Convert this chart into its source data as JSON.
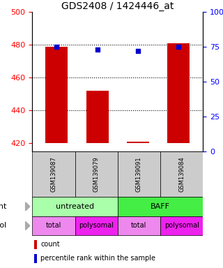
{
  "title": "GDS2408 / 1424446_at",
  "samples": [
    "GSM139087",
    "GSM139079",
    "GSM139091",
    "GSM139084"
  ],
  "bar_values": [
    479,
    452,
    421,
    481
  ],
  "percentile_values": [
    75,
    73,
    72,
    75
  ],
  "ylim_left": [
    415,
    500
  ],
  "ylim_right": [
    0,
    100
  ],
  "yticks_left": [
    420,
    440,
    460,
    480,
    500
  ],
  "yticks_right": [
    0,
    25,
    50,
    75,
    100
  ],
  "ytick_labels_right": [
    "0",
    "25",
    "50",
    "75",
    "100%"
  ],
  "bar_color": "#cc0000",
  "percentile_color": "#0000cc",
  "bar_bottom": 420,
  "grid_ticks": [
    440,
    460,
    480
  ],
  "agent_colors": [
    "#aaffaa",
    "#44ee44"
  ],
  "protocol_colors_total": "#ee88ee",
  "protocol_colors_polysomal": "#ee22ee",
  "sample_box_color": "#cccccc",
  "legend_count_color": "#cc0000",
  "legend_pct_color": "#0000cc",
  "fig_width": 3.2,
  "fig_height": 3.84,
  "dpi": 100
}
